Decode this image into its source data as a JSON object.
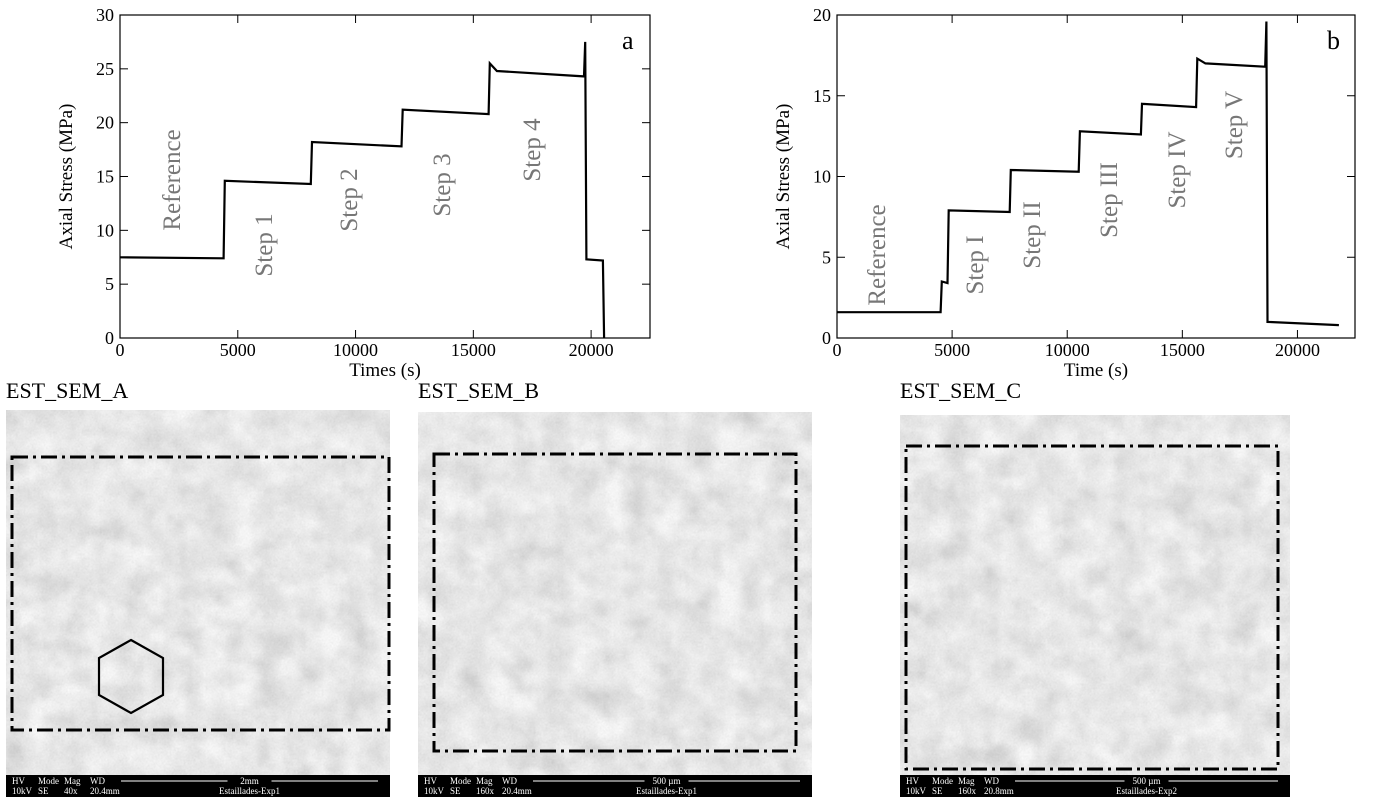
{
  "chart_data": [
    {
      "type": "line",
      "label": "a",
      "x_label": "Times (s)",
      "y_label": "Axial Stress (MPa)",
      "x": [
        0,
        4400,
        4450,
        8100,
        8150,
        11950,
        12000,
        15650,
        15700,
        16000,
        19700,
        19750,
        19800,
        20500,
        20550
      ],
      "values": [
        7.5,
        7.4,
        14.6,
        14.3,
        18.2,
        17.8,
        21.2,
        20.8,
        25.5,
        24.8,
        24.3,
        27.5,
        7.3,
        7.2,
        0
      ],
      "color": "#000000",
      "xlim": [
        0,
        22500
      ],
      "ylim": [
        0,
        30
      ],
      "xticks": [
        0,
        5000,
        10000,
        15000,
        20000
      ],
      "yticks": [
        0,
        5,
        10,
        15,
        20,
        25,
        30
      ],
      "annotations": [
        "Reference",
        "Step 1",
        "Step 2",
        "Step 3",
        "Step 4"
      ]
    },
    {
      "type": "line",
      "label": "b",
      "x_label": "Time (s)",
      "y_label": "Axial Stress (MPa)",
      "x": [
        0,
        4500,
        4550,
        4800,
        4850,
        7500,
        7550,
        10500,
        10550,
        13200,
        13250,
        15600,
        15650,
        16000,
        18600,
        18650,
        18700,
        21800
      ],
      "values": [
        1.6,
        1.6,
        3.5,
        3.4,
        7.9,
        7.8,
        10.4,
        10.3,
        12.8,
        12.6,
        14.5,
        14.3,
        17.3,
        17,
        16.8,
        19.6,
        1.0,
        0.8
      ],
      "color": "#000000",
      "xlim": [
        0,
        22500
      ],
      "ylim": [
        0,
        20
      ],
      "xticks": [
        0,
        5000,
        10000,
        15000,
        20000
      ],
      "yticks": [
        0,
        5,
        10,
        15,
        20
      ],
      "annotations": [
        "Reference",
        "Step I",
        "Step II",
        "Step III",
        "Step IV",
        "Step V"
      ]
    }
  ],
  "info_headers": [
    "HV",
    "Mode",
    "Mag",
    "WD"
  ],
  "images": [
    {
      "title": "EST_SEM_A",
      "info": [
        "10kV",
        "SE",
        "40x",
        "20.4mm"
      ],
      "scale": "2mm",
      "name": "Estaillades-Exp1"
    },
    {
      "title": "EST_SEM_B",
      "info": [
        "10kV",
        "SE",
        "160x",
        "20.4mm"
      ],
      "scale": "500 µm",
      "name": "Estaillades-Exp1"
    },
    {
      "title": "EST_SEM_C",
      "info": [
        "10kV",
        "SE",
        "160x",
        "20.8mm"
      ],
      "scale": "500 µm",
      "name": "Estaillades-Exp2"
    }
  ]
}
